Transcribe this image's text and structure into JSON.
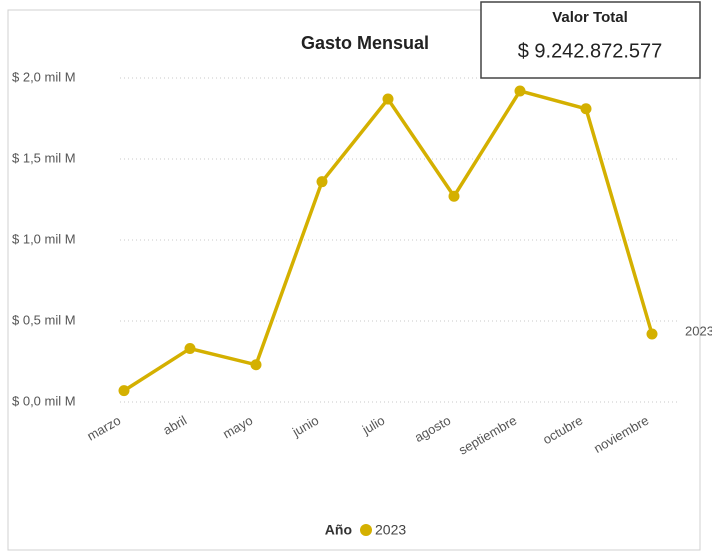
{
  "chart_data": {
    "type": "line",
    "title": "Gasto Mensual",
    "categories": [
      "marzo",
      "abril",
      "mayo",
      "junio",
      "julio",
      "agosto",
      "septiembre",
      "octubre",
      "noviembre"
    ],
    "series": [
      {
        "name": "2023",
        "color": "#d4b000",
        "values": [
          0.07,
          0.33,
          0.23,
          1.36,
          1.87,
          1.27,
          1.92,
          1.81,
          0.42
        ]
      }
    ],
    "ylim": [
      0,
      2.0
    ],
    "yticks": [
      {
        "value": 0,
        "label": "$ 0,0 mil M"
      },
      {
        "value": 0.5,
        "label": "$ 0,5 mil M"
      },
      {
        "value": 1.0,
        "label": "$ 1,0 mil M"
      },
      {
        "value": 1.5,
        "label": "$ 1,5 mil M"
      },
      {
        "value": 2.0,
        "label": "$ 2,0 mil M"
      }
    ],
    "grid": true,
    "legend_title": "Año",
    "legend": "bottom"
  },
  "card": {
    "title": "Valor Total",
    "value": "$ 9.242.872.577"
  }
}
